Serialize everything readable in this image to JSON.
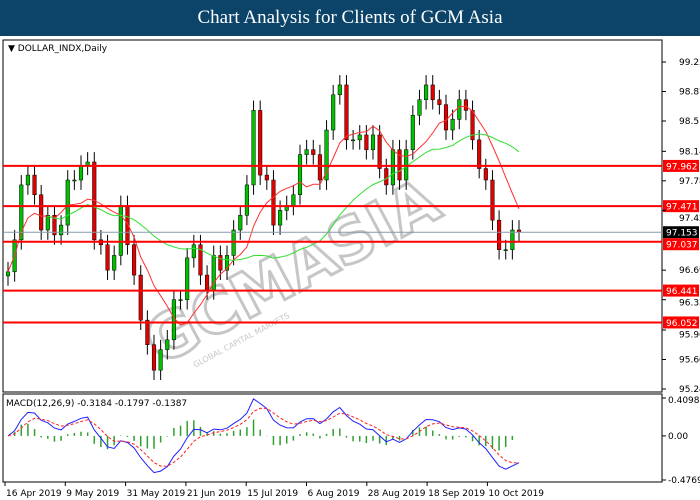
{
  "title": "Chart Analysis for Clients of GCM Asia",
  "watermark": {
    "logo": "GCMASIA",
    "tagline": "GLOBAL CAPITAL MARKETS"
  },
  "chart_data": {
    "type": "candlestick",
    "symbol_label": "DOLLAR_INDX,Daily",
    "price_axis": {
      "ticks": [
        "99.230",
        "98.870",
        "98.510",
        "98.140",
        "97.780",
        "97.420",
        "96.690",
        "96.330",
        "95.960",
        "95.600",
        "95.240"
      ],
      "range": [
        95.24,
        99.23
      ]
    },
    "date_ticks": [
      "16 Apr 2019",
      "9 May 2019",
      "31 May 2019",
      "21 Jun 2019",
      "15 Jul 2019",
      "6 Aug 2019",
      "28 Aug 2019",
      "18 Sep 2019",
      "10 Oct 2019"
    ],
    "closes": [
      96.67,
      97.06,
      97.73,
      97.85,
      97.61,
      97.18,
      97.36,
      97.12,
      97.24,
      97.79,
      97.79,
      97.97,
      98.01,
      97.06,
      97.0,
      96.69,
      96.87,
      97.48,
      97.0,
      96.63,
      96.08,
      95.78,
      95.47,
      95.72,
      95.84,
      96.33,
      96.33,
      96.84,
      97.0,
      96.63,
      96.45,
      96.87,
      96.69,
      96.87,
      97.18,
      97.36,
      97.73,
      98.64,
      97.85,
      97.79,
      97.24,
      97.42,
      97.48,
      97.61,
      98.1,
      98.16,
      98.1,
      97.79,
      98.4,
      98.83,
      98.95,
      98.28,
      98.28,
      98.34,
      98.16,
      98.34,
      97.93,
      97.73,
      98.16,
      97.79,
      98.16,
      98.58,
      98.77,
      98.95,
      98.77,
      98.71,
      98.4,
      98.53,
      98.77,
      98.64,
      98.28,
      97.93,
      97.79,
      97.3,
      96.94,
      96.94,
      97.18,
      97.153
    ],
    "current_price": {
      "label": "97.153",
      "value": 97.153,
      "color": "#000000"
    },
    "levels": [
      {
        "label": "97.962",
        "value": 97.962
      },
      {
        "label": "97.471",
        "value": 97.471
      },
      {
        "label": "97.037",
        "value": 97.037
      },
      {
        "label": "96.441",
        "value": 96.441
      },
      {
        "label": "96.052",
        "value": 96.052
      }
    ],
    "level_color": "#ff0000",
    "up_color": "#00c000",
    "down_color": "#e00000",
    "ma_fast_color": "#ff3030",
    "ma_slow_color": "#30e030",
    "macd": {
      "label": "MACD(12,26,9) -0.3184 -0.1797 -0.1387",
      "ticks": [
        "0.4098",
        "0.00",
        "-0.4769"
      ],
      "range": [
        -0.4769,
        0.4098
      ],
      "macd_color": "#2020ff",
      "signal_color": "#ff2020",
      "hist_color": "#30a030"
    }
  }
}
